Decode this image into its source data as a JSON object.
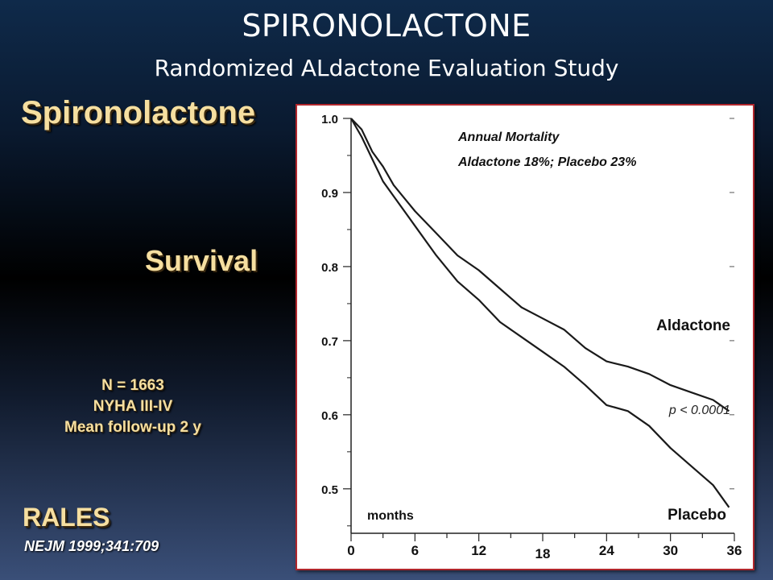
{
  "slide": {
    "title": "SPIRONOLACTONE",
    "subtitle": "Randomized ALdactone Evaluation Study",
    "left_heading": "Spironolactone",
    "left_survival": "Survival",
    "info_lines": [
      "N = 1663",
      "NYHA III-IV",
      "Mean follow-up 2 y"
    ],
    "study_name": "RALES",
    "citation": "NEJM 1999;341:709"
  },
  "colors": {
    "gold_text": "#f6dfa0",
    "panel_border": "#b0262c",
    "curve": "#1a1a1a"
  },
  "chart_data": {
    "type": "line",
    "title": "",
    "xlabel": "months",
    "ylabel": "",
    "xlim": [
      0,
      36
    ],
    "ylim": [
      0.44,
      1.0
    ],
    "x_ticks": [
      "0",
      "6",
      "12",
      "18",
      "24",
      "30",
      "36"
    ],
    "y_ticks": [
      "1.0",
      "0.9",
      "0.8",
      "0.7",
      "0.6",
      "0.5"
    ],
    "annotation_lines": [
      "Annual Mortality",
      "Aldactone 18%; Placebo 23%"
    ],
    "p_value_label": "p < 0.0001",
    "series": [
      {
        "name": "Aldactone",
        "x": [
          0,
          1,
          2,
          3,
          4,
          6,
          8,
          10,
          12,
          14,
          16,
          18,
          20,
          22,
          24,
          26,
          28,
          30,
          32,
          34,
          35.5
        ],
        "y": [
          1.0,
          0.985,
          0.955,
          0.935,
          0.91,
          0.875,
          0.845,
          0.815,
          0.795,
          0.77,
          0.745,
          0.73,
          0.715,
          0.69,
          0.672,
          0.665,
          0.655,
          0.64,
          0.63,
          0.62,
          0.605
        ]
      },
      {
        "name": "Placebo",
        "x": [
          0,
          1,
          2,
          3,
          4,
          6,
          8,
          10,
          12,
          14,
          16,
          18,
          20,
          22,
          24,
          26,
          28,
          30,
          32,
          34,
          35.5
        ],
        "y": [
          1.0,
          0.975,
          0.945,
          0.915,
          0.895,
          0.855,
          0.815,
          0.78,
          0.755,
          0.725,
          0.705,
          0.685,
          0.665,
          0.64,
          0.613,
          0.605,
          0.585,
          0.555,
          0.53,
          0.505,
          0.475
        ]
      }
    ]
  }
}
